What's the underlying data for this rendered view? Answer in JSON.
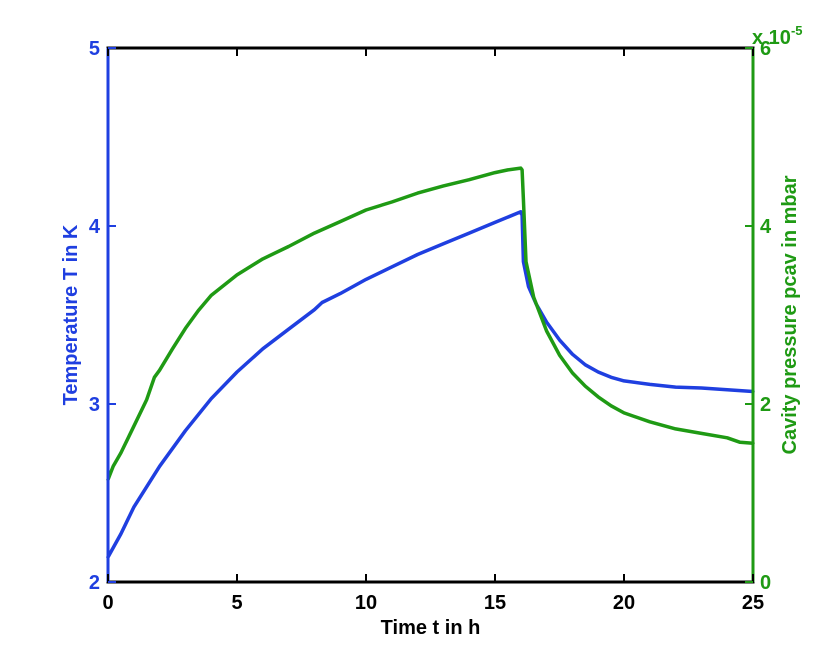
{
  "chart_data": {
    "type": "line",
    "title": "",
    "xlabel": "Time t in h",
    "ylabel_left": "Temperature T in K",
    "ylabel_right": "Cavity pressure pcav in mbar",
    "right_axis_multiplier": "x 10",
    "right_axis_exponent": "-5",
    "xlim": [
      0,
      25
    ],
    "ylim_left": [
      2,
      5
    ],
    "ylim_right": [
      0,
      6
    ],
    "x_ticks": [
      "0",
      "5",
      "10",
      "15",
      "20",
      "25"
    ],
    "y_left_ticks": [
      "2",
      "3",
      "4",
      "5"
    ],
    "y_right_ticks": [
      "0",
      "2",
      "4",
      "6"
    ],
    "grid": false,
    "colors": {
      "temperature": "#1f3fe0",
      "pressure": "#1f9a14",
      "axes": "#000000"
    },
    "series": [
      {
        "axis": "left",
        "values_x": [
          0,
          0.5,
          1,
          2,
          3,
          4,
          5,
          6,
          7,
          8,
          8.3,
          9,
          10,
          11,
          12,
          13,
          14,
          15,
          16,
          16.05,
          16.1,
          16.3,
          16.6,
          17,
          17.5,
          18,
          18.5,
          19,
          19.5,
          20,
          21,
          22,
          23,
          24,
          24.5,
          25
        ],
        "values_y": [
          2.14,
          2.27,
          2.42,
          2.65,
          2.85,
          3.03,
          3.18,
          3.31,
          3.42,
          3.53,
          3.57,
          3.62,
          3.7,
          3.77,
          3.84,
          3.9,
          3.96,
          4.02,
          4.08,
          4.06,
          3.8,
          3.66,
          3.56,
          3.46,
          3.36,
          3.28,
          3.22,
          3.18,
          3.15,
          3.13,
          3.11,
          3.095,
          3.09,
          3.08,
          3.075,
          3.07
        ]
      },
      {
        "axis": "right",
        "values_x": [
          0,
          0.2,
          0.5,
          1,
          1.5,
          1.8,
          2,
          2.5,
          3,
          3.5,
          4,
          5,
          6,
          7,
          8,
          9,
          10,
          11,
          12,
          13,
          14,
          15,
          15.5,
          16,
          16.05,
          16.1,
          16.2,
          16.5,
          17,
          17.5,
          18,
          18.5,
          19,
          19.5,
          20,
          21,
          22,
          23,
          24,
          24.5,
          25
        ],
        "values_y": [
          1.15,
          1.3,
          1.45,
          1.75,
          2.05,
          2.3,
          2.38,
          2.62,
          2.85,
          3.05,
          3.22,
          3.45,
          3.63,
          3.77,
          3.92,
          4.05,
          4.18,
          4.27,
          4.37,
          4.45,
          4.52,
          4.6,
          4.63,
          4.65,
          4.63,
          4.3,
          3.6,
          3.2,
          2.82,
          2.55,
          2.35,
          2.2,
          2.08,
          1.98,
          1.9,
          1.8,
          1.72,
          1.67,
          1.62,
          1.57,
          1.56
        ]
      }
    ]
  }
}
